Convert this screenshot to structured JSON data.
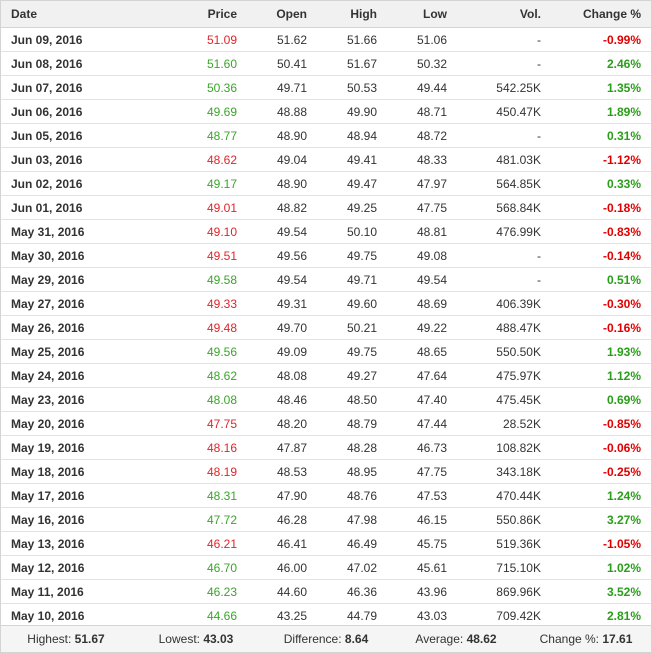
{
  "headers": {
    "date": "Date",
    "price": "Price",
    "open": "Open",
    "high": "High",
    "low": "Low",
    "vol": "Vol.",
    "change": "Change %"
  },
  "rows": [
    {
      "date": "Jun 09, 2016",
      "price": "51.09",
      "open": "51.62",
      "high": "51.66",
      "low": "51.06",
      "vol": "-",
      "change": "-0.99%",
      "dir": "down"
    },
    {
      "date": "Jun 08, 2016",
      "price": "51.60",
      "open": "50.41",
      "high": "51.67",
      "low": "50.32",
      "vol": "-",
      "change": "2.46%",
      "dir": "up"
    },
    {
      "date": "Jun 07, 2016",
      "price": "50.36",
      "open": "49.71",
      "high": "50.53",
      "low": "49.44",
      "vol": "542.25K",
      "change": "1.35%",
      "dir": "up"
    },
    {
      "date": "Jun 06, 2016",
      "price": "49.69",
      "open": "48.88",
      "high": "49.90",
      "low": "48.71",
      "vol": "450.47K",
      "change": "1.89%",
      "dir": "up"
    },
    {
      "date": "Jun 05, 2016",
      "price": "48.77",
      "open": "48.90",
      "high": "48.94",
      "low": "48.72",
      "vol": "-",
      "change": "0.31%",
      "dir": "up"
    },
    {
      "date": "Jun 03, 2016",
      "price": "48.62",
      "open": "49.04",
      "high": "49.41",
      "low": "48.33",
      "vol": "481.03K",
      "change": "-1.12%",
      "dir": "down"
    },
    {
      "date": "Jun 02, 2016",
      "price": "49.17",
      "open": "48.90",
      "high": "49.47",
      "low": "47.97",
      "vol": "564.85K",
      "change": "0.33%",
      "dir": "up"
    },
    {
      "date": "Jun 01, 2016",
      "price": "49.01",
      "open": "48.82",
      "high": "49.25",
      "low": "47.75",
      "vol": "568.84K",
      "change": "-0.18%",
      "dir": "down"
    },
    {
      "date": "May 31, 2016",
      "price": "49.10",
      "open": "49.54",
      "high": "50.10",
      "low": "48.81",
      "vol": "476.99K",
      "change": "-0.83%",
      "dir": "down"
    },
    {
      "date": "May 30, 2016",
      "price": "49.51",
      "open": "49.56",
      "high": "49.75",
      "low": "49.08",
      "vol": "-",
      "change": "-0.14%",
      "dir": "down"
    },
    {
      "date": "May 29, 2016",
      "price": "49.58",
      "open": "49.54",
      "high": "49.71",
      "low": "49.54",
      "vol": "-",
      "change": "0.51%",
      "dir": "up"
    },
    {
      "date": "May 27, 2016",
      "price": "49.33",
      "open": "49.31",
      "high": "49.60",
      "low": "48.69",
      "vol": "406.39K",
      "change": "-0.30%",
      "dir": "down"
    },
    {
      "date": "May 26, 2016",
      "price": "49.48",
      "open": "49.70",
      "high": "50.21",
      "low": "49.22",
      "vol": "488.47K",
      "change": "-0.16%",
      "dir": "down"
    },
    {
      "date": "May 25, 2016",
      "price": "49.56",
      "open": "49.09",
      "high": "49.75",
      "low": "48.65",
      "vol": "550.50K",
      "change": "1.93%",
      "dir": "up"
    },
    {
      "date": "May 24, 2016",
      "price": "48.62",
      "open": "48.08",
      "high": "49.27",
      "low": "47.64",
      "vol": "475.97K",
      "change": "1.12%",
      "dir": "up"
    },
    {
      "date": "May 23, 2016",
      "price": "48.08",
      "open": "48.46",
      "high": "48.50",
      "low": "47.40",
      "vol": "475.45K",
      "change": "0.69%",
      "dir": "up"
    },
    {
      "date": "May 20, 2016",
      "price": "47.75",
      "open": "48.20",
      "high": "48.79",
      "low": "47.44",
      "vol": "28.52K",
      "change": "-0.85%",
      "dir": "down"
    },
    {
      "date": "May 19, 2016",
      "price": "48.16",
      "open": "47.87",
      "high": "48.28",
      "low": "46.73",
      "vol": "108.82K",
      "change": "-0.06%",
      "dir": "down"
    },
    {
      "date": "May 18, 2016",
      "price": "48.19",
      "open": "48.53",
      "high": "48.95",
      "low": "47.75",
      "vol": "343.18K",
      "change": "-0.25%",
      "dir": "down"
    },
    {
      "date": "May 17, 2016",
      "price": "48.31",
      "open": "47.90",
      "high": "48.76",
      "low": "47.53",
      "vol": "470.44K",
      "change": "1.24%",
      "dir": "up"
    },
    {
      "date": "May 16, 2016",
      "price": "47.72",
      "open": "46.28",
      "high": "47.98",
      "low": "46.15",
      "vol": "550.86K",
      "change": "3.27%",
      "dir": "up"
    },
    {
      "date": "May 13, 2016",
      "price": "46.21",
      "open": "46.41",
      "high": "46.49",
      "low": "45.75",
      "vol": "519.36K",
      "change": "-1.05%",
      "dir": "down"
    },
    {
      "date": "May 12, 2016",
      "price": "46.70",
      "open": "46.00",
      "high": "47.02",
      "low": "45.61",
      "vol": "715.10K",
      "change": "1.02%",
      "dir": "up"
    },
    {
      "date": "May 11, 2016",
      "price": "46.23",
      "open": "44.60",
      "high": "46.36",
      "low": "43.96",
      "vol": "869.96K",
      "change": "3.52%",
      "dir": "up"
    },
    {
      "date": "May 10, 2016",
      "price": "44.66",
      "open": "43.25",
      "high": "44.79",
      "low": "43.03",
      "vol": "709.42K",
      "change": "2.81%",
      "dir": "up"
    }
  ],
  "summary": {
    "highest_label": "Highest:",
    "highest": "51.67",
    "lowest_label": "Lowest:",
    "lowest": "43.03",
    "difference_label": "Difference:",
    "difference": "8.64",
    "average_label": "Average:",
    "average": "48.62",
    "change_label": "Change %:",
    "change": "17.61"
  },
  "colors": {
    "up": "#2a9d1a",
    "down": "#e00000"
  }
}
